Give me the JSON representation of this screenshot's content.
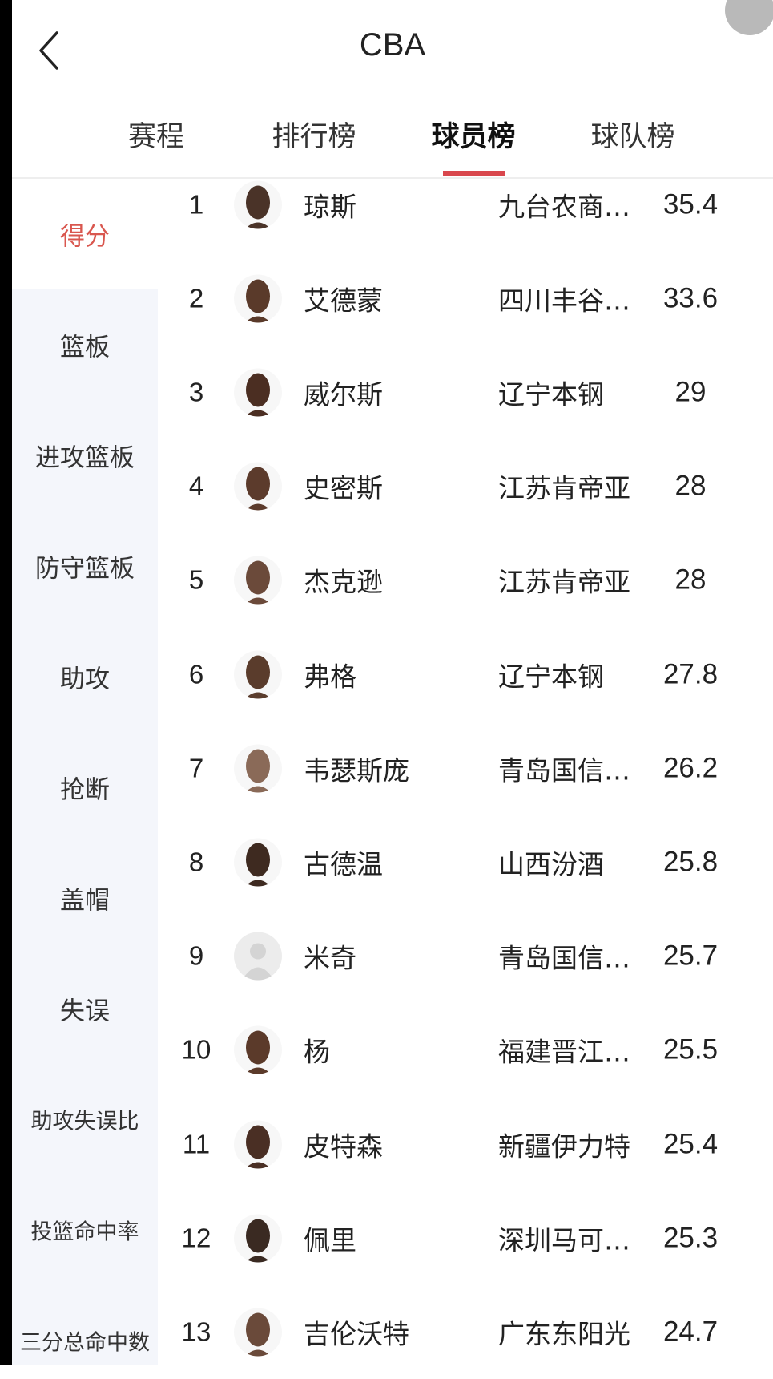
{
  "header": {
    "title": "CBA",
    "back_icon": "chevron-left-icon"
  },
  "colors": {
    "accent": "#d9474d",
    "active_category": "#d9574f",
    "sidebar_bg": "#f4f6fb"
  },
  "tabs": [
    {
      "label": "赛程",
      "active": false
    },
    {
      "label": "排行榜",
      "active": false
    },
    {
      "label": "球员榜",
      "active": true
    },
    {
      "label": "球队榜",
      "active": false
    }
  ],
  "sidebar": {
    "items": [
      {
        "label": "得分",
        "active": true
      },
      {
        "label": "篮板",
        "active": false
      },
      {
        "label": "进攻篮板",
        "active": false
      },
      {
        "label": "防守篮板",
        "active": false
      },
      {
        "label": "助攻",
        "active": false
      },
      {
        "label": "抢断",
        "active": false
      },
      {
        "label": "盖帽",
        "active": false
      },
      {
        "label": "失误",
        "active": false
      },
      {
        "label": "助攻失误比",
        "active": false
      },
      {
        "label": "投篮命中率",
        "active": false
      },
      {
        "label": "三分总命中数",
        "active": false
      }
    ]
  },
  "players": [
    {
      "rank": "1",
      "name": "琼斯",
      "team": "九台农商…",
      "value": "35.4",
      "avatar": "photo"
    },
    {
      "rank": "2",
      "name": "艾德蒙",
      "team": "四川丰谷…",
      "value": "33.6",
      "avatar": "photo"
    },
    {
      "rank": "3",
      "name": "威尔斯",
      "team": "辽宁本钢",
      "value": "29",
      "avatar": "photo"
    },
    {
      "rank": "4",
      "name": "史密斯",
      "team": "江苏肯帝亚",
      "value": "28",
      "avatar": "photo"
    },
    {
      "rank": "5",
      "name": "杰克逊",
      "team": "江苏肯帝亚",
      "value": "28",
      "avatar": "photo"
    },
    {
      "rank": "6",
      "name": "弗格",
      "team": "辽宁本钢",
      "value": "27.8",
      "avatar": "photo"
    },
    {
      "rank": "7",
      "name": "韦瑟斯庞",
      "team": "青岛国信…",
      "value": "26.2",
      "avatar": "photo"
    },
    {
      "rank": "8",
      "name": "古德温",
      "team": "山西汾酒",
      "value": "25.8",
      "avatar": "photo"
    },
    {
      "rank": "9",
      "name": "米奇",
      "team": "青岛国信…",
      "value": "25.7",
      "avatar": "placeholder"
    },
    {
      "rank": "10",
      "name": "杨",
      "team": "福建晋江…",
      "value": "25.5",
      "avatar": "photo"
    },
    {
      "rank": "11",
      "name": "皮特森",
      "team": "新疆伊力特",
      "value": "25.4",
      "avatar": "photo"
    },
    {
      "rank": "12",
      "name": "佩里",
      "team": "深圳马可…",
      "value": "25.3",
      "avatar": "photo"
    },
    {
      "rank": "13",
      "name": "吉伦沃特",
      "team": "广东东阳光",
      "value": "24.7",
      "avatar": "photo"
    }
  ]
}
